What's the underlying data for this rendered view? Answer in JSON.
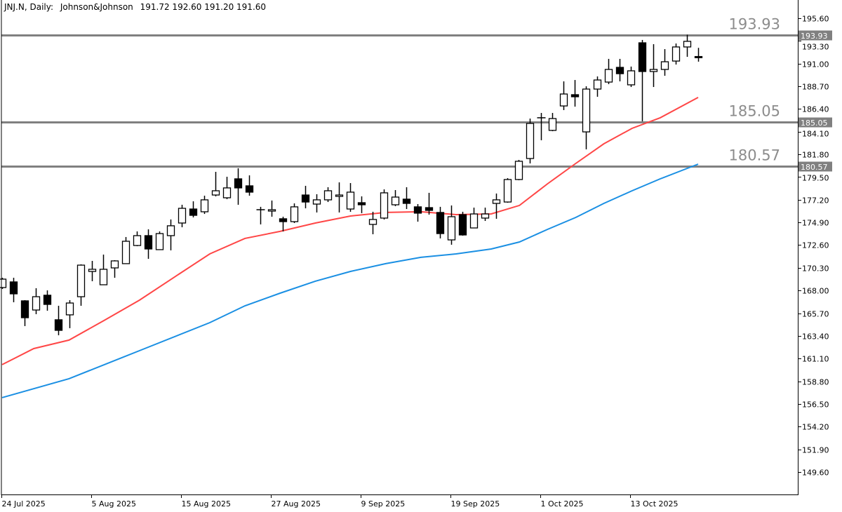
{
  "header": {
    "symbol": "JNJ.N, Daily:",
    "name": "Johnson&Johnson",
    "ohlc_text": "191.72 192.60 191.20 191.60"
  },
  "colors": {
    "ma_fast": "#ff4646",
    "ma_slow": "#1a8fe3",
    "level": "#808080",
    "level_text": "#8c8c8c",
    "candle": "#000000"
  },
  "chart_data": {
    "type": "candlestick",
    "title": "JNJ.N, Daily: Johnson&Johnson",
    "ylim": [
      147.32,
      197.45
    ],
    "y_ticks": [
      "195.60",
      "193.30",
      "191.00",
      "188.70",
      "186.40",
      "184.10",
      "181.80",
      "179.50",
      "177.20",
      "174.90",
      "172.60",
      "170.30",
      "168.00",
      "165.70",
      "163.40",
      "161.10",
      "158.80",
      "156.50",
      "154.20",
      "151.90",
      "149.60"
    ],
    "x_ticks": [
      {
        "bar": 0,
        "label": "24 Jul 2025"
      },
      {
        "bar": 8,
        "label": "5 Aug 2025"
      },
      {
        "bar": 16,
        "label": "15 Aug 2025"
      },
      {
        "bar": 24,
        "label": "27 Aug 2025"
      },
      {
        "bar": 32,
        "label": "9 Sep 2025"
      },
      {
        "bar": 40,
        "label": "19 Sep 2025"
      },
      {
        "bar": 48,
        "label": "1 Oct 2025"
      },
      {
        "bar": 56,
        "label": "13 Oct 2025"
      }
    ],
    "ohlc": [
      [
        168.3,
        169.29,
        168.16,
        169.15
      ],
      [
        168.87,
        169.29,
        166.81,
        167.66
      ],
      [
        166.95,
        167.02,
        164.39,
        165.24
      ],
      [
        166.02,
        168.23,
        165.6,
        167.37
      ],
      [
        167.52,
        168.01,
        165.95,
        166.59
      ],
      [
        165.03,
        166.45,
        163.46,
        163.96
      ],
      [
        165.53,
        167.02,
        164.18,
        166.73
      ],
      [
        167.37,
        170.65,
        166.45,
        170.57
      ],
      [
        169.93,
        171.0,
        168.94,
        170.15
      ],
      [
        168.58,
        171.64,
        168.58,
        170.15
      ],
      [
        170.29,
        171.07,
        169.29,
        171.0
      ],
      [
        170.72,
        173.42,
        170.72,
        172.99
      ],
      [
        172.56,
        173.99,
        172.49,
        173.56
      ],
      [
        173.56,
        174.2,
        171.21,
        172.21
      ],
      [
        172.14,
        173.99,
        172.14,
        173.77
      ],
      [
        173.56,
        175.2,
        172.07,
        174.56
      ],
      [
        174.84,
        176.69,
        174.41,
        176.33
      ],
      [
        176.26,
        177.04,
        175.41,
        175.62
      ],
      [
        175.98,
        177.61,
        175.76,
        177.19
      ],
      [
        177.68,
        180.03,
        177.54,
        178.11
      ],
      [
        177.4,
        179.53,
        177.26,
        178.4
      ],
      [
        179.32,
        180.39,
        176.69,
        178.4
      ],
      [
        178.61,
        179.67,
        177.61,
        177.97
      ],
      [
        176.19,
        176.48,
        174.7,
        176.19
      ],
      [
        176.05,
        177.12,
        175.48,
        176.19
      ],
      [
        175.27,
        175.48,
        173.99,
        174.98
      ],
      [
        174.98,
        176.83,
        174.84,
        176.48
      ],
      [
        177.68,
        178.61,
        176.33,
        176.97
      ],
      [
        176.76,
        177.76,
        175.91,
        177.19
      ],
      [
        177.19,
        178.47,
        176.97,
        178.11
      ],
      [
        177.54,
        178.96,
        175.91,
        177.68
      ],
      [
        176.26,
        178.89,
        175.98,
        177.97
      ],
      [
        176.9,
        177.54,
        175.84,
        176.69
      ],
      [
        174.7,
        175.98,
        173.7,
        175.2
      ],
      [
        175.34,
        178.25,
        175.2,
        177.9
      ],
      [
        176.69,
        178.18,
        176.55,
        177.47
      ],
      [
        177.26,
        178.47,
        176.26,
        176.83
      ],
      [
        176.48,
        176.76,
        174.98,
        175.84
      ],
      [
        176.4,
        177.9,
        175.69,
        176.12
      ],
      [
        175.91,
        176.48,
        173.28,
        173.77
      ],
      [
        173.13,
        176.62,
        172.64,
        175.48
      ],
      [
        175.69,
        175.98,
        173.56,
        173.63
      ],
      [
        174.34,
        176.4,
        174.34,
        175.76
      ],
      [
        175.34,
        176.4,
        175.05,
        175.76
      ],
      [
        176.83,
        177.83,
        175.27,
        177.19
      ],
      [
        176.97,
        179.39,
        176.9,
        179.25
      ],
      [
        179.25,
        181.24,
        179.18,
        181.1
      ],
      [
        181.38,
        185.43,
        180.88,
        184.94
      ],
      [
        185.51,
        186.0,
        183.23,
        185.51
      ],
      [
        184.23,
        186.0,
        184.15,
        185.43
      ],
      [
        186.71,
        189.2,
        186.29,
        187.92
      ],
      [
        187.85,
        189.34,
        186.64,
        187.64
      ],
      [
        184.08,
        188.7,
        182.31,
        188.42
      ],
      [
        188.42,
        189.7,
        187.64,
        189.34
      ],
      [
        189.13,
        191.48,
        188.92,
        190.41
      ],
      [
        190.62,
        191.48,
        189.2,
        189.98
      ],
      [
        188.85,
        190.7,
        188.63,
        190.27
      ],
      [
        193.11,
        193.4,
        185.15,
        190.2
      ],
      [
        190.2,
        192.97,
        188.63,
        190.41
      ],
      [
        190.41,
        192.47,
        189.77,
        191.19
      ],
      [
        191.26,
        193.04,
        190.91,
        192.69
      ],
      [
        192.69,
        193.93,
        191.69,
        193.26
      ],
      [
        191.72,
        192.6,
        191.2,
        191.6
      ]
    ],
    "series": [
      {
        "name": "ma-fast",
        "points": [
          [
            0,
            160.48
          ],
          [
            2.82,
            162.11
          ],
          [
            5.96,
            162.97
          ],
          [
            9.09,
            164.96
          ],
          [
            12.23,
            167.02
          ],
          [
            15.36,
            169.37
          ],
          [
            18.5,
            171.71
          ],
          [
            21.63,
            173.28
          ],
          [
            24.76,
            173.99
          ],
          [
            27.9,
            174.84
          ],
          [
            31.03,
            175.55
          ],
          [
            34.17,
            175.91
          ],
          [
            37.3,
            175.98
          ],
          [
            40.44,
            175.69
          ],
          [
            43.57,
            175.76
          ],
          [
            46.08,
            176.62
          ],
          [
            48.59,
            178.82
          ],
          [
            51.1,
            180.88
          ],
          [
            53.6,
            182.87
          ],
          [
            56.11,
            184.44
          ],
          [
            58.62,
            185.51
          ],
          [
            62,
            187.57
          ]
        ]
      },
      {
        "name": "ma-slow",
        "points": [
          [
            0,
            157.14
          ],
          [
            5.96,
            159.06
          ],
          [
            12.23,
            161.9
          ],
          [
            18.5,
            164.74
          ],
          [
            21.63,
            166.45
          ],
          [
            24.76,
            167.73
          ],
          [
            27.9,
            168.94
          ],
          [
            31.03,
            169.93
          ],
          [
            34.17,
            170.72
          ],
          [
            37.3,
            171.36
          ],
          [
            40.44,
            171.71
          ],
          [
            43.57,
            172.21
          ],
          [
            46.08,
            172.92
          ],
          [
            48.59,
            174.2
          ],
          [
            51.1,
            175.41
          ],
          [
            53.6,
            176.83
          ],
          [
            56.11,
            178.11
          ],
          [
            58.62,
            179.32
          ],
          [
            62,
            180.81
          ]
        ]
      }
    ],
    "levels": [
      {
        "value": 193.93,
        "label": "193.93"
      },
      {
        "value": 185.05,
        "label": "185.05"
      },
      {
        "value": 180.57,
        "label": "180.57"
      }
    ]
  }
}
